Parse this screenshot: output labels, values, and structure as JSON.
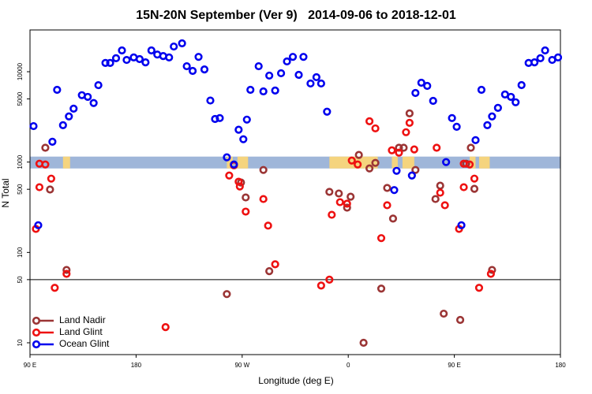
{
  "chart_data": {
    "type": "scatter",
    "title": "15N-20N September (Ver 9)   2014-09-06 to 2018-12-01",
    "xlabel": "Longitude (deg E)",
    "ylabel": "N Total",
    "xlim": [
      90,
      540
    ],
    "ylim": [
      7.4,
      29000
    ],
    "yscale": "log",
    "xticks": [
      {
        "value": 90,
        "label": "90 E"
      },
      180,
      {
        "value": 270,
        "label": "90 W"
      },
      {
        "value": 360,
        "label": "0"
      },
      {
        "value": 450,
        "label": "90 E"
      },
      {
        "value": 540,
        "label": "180"
      }
    ],
    "yticks": [
      10,
      50,
      100,
      500,
      1000,
      5000,
      10000
    ],
    "reference_line": {
      "value": 50,
      "color": "#000000"
    },
    "band": {
      "ylim": [
        850,
        1150
      ],
      "color": "#9fb6d9"
    },
    "band_highlights": {
      "color": "#f5d47e",
      "ranges": [
        [
          118,
          124
        ],
        [
          257,
          262
        ],
        [
          266,
          275
        ],
        [
          344,
          385
        ],
        [
          397,
          402
        ],
        [
          406,
          416
        ],
        [
          463,
          468
        ],
        [
          471,
          480
        ]
      ]
    },
    "legend": "lower left",
    "series": [
      {
        "name": "Land Nadir",
        "color": "#9b3535",
        "x": [
          103,
          107,
          121,
          257,
          269,
          273,
          288,
          293,
          344,
          352,
          359,
          362,
          369,
          373,
          378,
          383,
          388,
          393,
          398,
          403,
          407,
          412,
          417,
          434,
          438,
          441,
          455,
          460,
          464,
          467,
          482
        ],
        "values": [
          1440,
          497,
          64,
          34.6,
          594,
          406,
          818,
          62,
          468,
          449,
          313,
          414,
          1200,
          10,
          851,
          980,
          39.8,
          517,
          237,
          1440,
          1440,
          3460,
          818,
          390,
          548,
          21,
          17.9,
          960,
          1440,
          506,
          64
        ]
      },
      {
        "name": "Land Glint",
        "color": "#ee1111",
        "x": [
          95,
          98,
          98,
          103,
          108,
          111,
          121,
          205,
          259,
          263,
          267,
          268,
          273,
          288,
          292,
          298,
          337,
          344,
          346,
          353,
          359,
          363,
          368,
          378,
          383,
          388,
          393,
          397,
          403,
          409,
          412,
          416,
          435,
          438,
          442,
          454,
          458,
          458,
          463,
          467,
          471,
          481
        ],
        "values": [
          182,
          960,
          527,
          940,
          656,
          40.6,
          58,
          14.9,
          710,
          920,
          607,
          537,
          283,
          390,
          198,
          74,
          43,
          50,
          261,
          360,
          346,
          1040,
          940,
          2830,
          2360,
          144,
          333,
          1350,
          1270,
          2140,
          2720,
          1380,
          1440,
          458,
          333,
          182,
          960,
          527,
          940,
          656,
          40.6,
          58
        ]
      },
      {
        "name": "Ocean Glint",
        "color": "#0000ee",
        "x": [
          93,
          97,
          109,
          113,
          118,
          123,
          127,
          134,
          139,
          144,
          148,
          154,
          158,
          163,
          168,
          172,
          178,
          183,
          188,
          193,
          198,
          203,
          208,
          212,
          219,
          223,
          228,
          233,
          238,
          243,
          247,
          251,
          257,
          263,
          267,
          271,
          274,
          277,
          284,
          288,
          293,
          298,
          303,
          308,
          313,
          318,
          322,
          328,
          333,
          337,
          342,
          401,
          399,
          414,
          417,
          422,
          427,
          432,
          443,
          448,
          452,
          456,
          468,
          473,
          478,
          482,
          487,
          493,
          498,
          502,
          507,
          513,
          518,
          523,
          527,
          533,
          538
        ],
        "values": [
          2500,
          200,
          1680,
          6300,
          2560,
          3200,
          3900,
          5500,
          5270,
          4500,
          7100,
          12500,
          12500,
          14100,
          17200,
          13500,
          14400,
          13800,
          12700,
          17200,
          15500,
          14900,
          14400,
          19000,
          20600,
          11500,
          10200,
          14600,
          10600,
          4800,
          3000,
          3070,
          1130,
          940,
          2280,
          1790,
          2950,
          6300,
          11500,
          6060,
          9060,
          6190,
          9620,
          13000,
          14600,
          9230,
          14600,
          7410,
          8700,
          7410,
          3610,
          800,
          490,
          710,
          5820,
          7550,
          6970,
          4760,
          1000,
          3070,
          2460,
          200,
          1750,
          6300,
          2560,
          3200,
          3980,
          5600,
          5270,
          4590,
          7110,
          12500,
          12700,
          14100,
          17200,
          13500,
          14400
        ]
      }
    ]
  }
}
